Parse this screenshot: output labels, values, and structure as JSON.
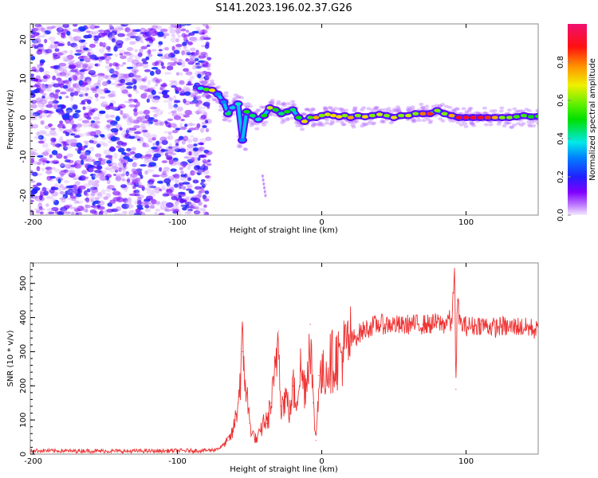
{
  "title": "S141.2023.196.02.37.G26",
  "chart_data": [
    {
      "type": "heatmap",
      "name": "spectrogram",
      "xlabel": "Height of straight line (km)",
      "ylabel": "Frequency (Hz)",
      "xlim": [
        -202,
        150
      ],
      "ylim": [
        -25,
        24
      ],
      "xticks": [
        -200,
        -100,
        0,
        100
      ],
      "yticks": [
        20,
        10,
        0,
        -10,
        -20
      ],
      "colorbar": {
        "label": "Normalized spectral amplitude",
        "range": [
          0,
          1
        ],
        "ticks": [
          "0.0",
          "0.2",
          "0.4",
          "0.6",
          "0.8"
        ]
      },
      "noise_region": {
        "x_range": [
          -202,
          -78
        ],
        "freq_range": [
          -25,
          24
        ],
        "amplitude_range": [
          0.0,
          0.2
        ]
      },
      "ridge": [
        {
          "x": -84,
          "f": 7.5,
          "a": 0.4
        },
        {
          "x": -80,
          "f": 7.2,
          "a": 0.55
        },
        {
          "x": -76,
          "f": 7.0,
          "a": 0.7
        },
        {
          "x": -72,
          "f": 6.0,
          "a": 0.3
        },
        {
          "x": -68,
          "f": 4.0,
          "a": 0.3
        },
        {
          "x": -65,
          "f": 1.0,
          "a": 0.45
        },
        {
          "x": -62,
          "f": 2.5,
          "a": 0.35
        },
        {
          "x": -58,
          "f": 3.5,
          "a": 0.4
        },
        {
          "x": -55,
          "f": -5.8,
          "a": 0.3
        },
        {
          "x": -52,
          "f": 1.5,
          "a": 0.5
        },
        {
          "x": -48,
          "f": 0.5,
          "a": 0.45
        },
        {
          "x": -44,
          "f": -0.5,
          "a": 0.4
        },
        {
          "x": -40,
          "f": 0.5,
          "a": 0.5
        },
        {
          "x": -36,
          "f": 2.5,
          "a": 0.65
        },
        {
          "x": -32,
          "f": 2.0,
          "a": 0.5
        },
        {
          "x": -28,
          "f": 1.0,
          "a": 0.45
        },
        {
          "x": -24,
          "f": 1.5,
          "a": 0.5
        },
        {
          "x": -20,
          "f": 2.0,
          "a": 0.45
        },
        {
          "x": -16,
          "f": 0.0,
          "a": 0.5
        },
        {
          "x": -12,
          "f": -1.0,
          "a": 0.7
        },
        {
          "x": -8,
          "f": 0.0,
          "a": 0.55
        },
        {
          "x": -4,
          "f": 0.0,
          "a": 0.75
        },
        {
          "x": 0,
          "f": 0.5,
          "a": 0.6
        },
        {
          "x": 4,
          "f": 0.8,
          "a": 0.65
        },
        {
          "x": 8,
          "f": 0.5,
          "a": 0.7
        },
        {
          "x": 12,
          "f": 0.2,
          "a": 0.7
        },
        {
          "x": 16,
          "f": 0.5,
          "a": 0.6
        },
        {
          "x": 20,
          "f": 0.0,
          "a": 0.75
        },
        {
          "x": 25,
          "f": 0.5,
          "a": 0.6
        },
        {
          "x": 30,
          "f": 0.2,
          "a": 0.7
        },
        {
          "x": 35,
          "f": 0.5,
          "a": 0.6
        },
        {
          "x": 40,
          "f": 0.8,
          "a": 0.65
        },
        {
          "x": 45,
          "f": 0.5,
          "a": 0.6
        },
        {
          "x": 50,
          "f": 0.0,
          "a": 0.7
        },
        {
          "x": 55,
          "f": 0.5,
          "a": 0.6
        },
        {
          "x": 60,
          "f": 0.5,
          "a": 0.65
        },
        {
          "x": 65,
          "f": 1.0,
          "a": 0.6
        },
        {
          "x": 70,
          "f": 1.0,
          "a": 0.8
        },
        {
          "x": 75,
          "f": 1.0,
          "a": 0.85
        },
        {
          "x": 80,
          "f": 1.8,
          "a": 0.6
        },
        {
          "x": 85,
          "f": 1.0,
          "a": 0.6
        },
        {
          "x": 90,
          "f": 0.5,
          "a": 0.75
        },
        {
          "x": 95,
          "f": 0.0,
          "a": 0.9
        },
        {
          "x": 100,
          "f": 0.0,
          "a": 0.9
        },
        {
          "x": 105,
          "f": 0.0,
          "a": 0.9
        },
        {
          "x": 110,
          "f": 0.0,
          "a": 0.9
        },
        {
          "x": 115,
          "f": 0.0,
          "a": 0.85
        },
        {
          "x": 120,
          "f": 0.0,
          "a": 0.75
        },
        {
          "x": 125,
          "f": 0.0,
          "a": 0.6
        },
        {
          "x": 130,
          "f": 0.0,
          "a": 0.6
        },
        {
          "x": 135,
          "f": 0.2,
          "a": 0.55
        },
        {
          "x": 140,
          "f": 0.5,
          "a": 0.55
        },
        {
          "x": 145,
          "f": 0.2,
          "a": 0.5
        },
        {
          "x": 150,
          "f": 0.3,
          "a": 0.5
        }
      ]
    },
    {
      "type": "line",
      "name": "snr",
      "xlabel": "Height of straight line (km)",
      "ylabel": "SNR (10 * v/v)",
      "xlim": [
        -202,
        150
      ],
      "ylim": [
        0,
        560
      ],
      "xticks": [
        -200,
        -100,
        0,
        100
      ],
      "yticks": [
        0,
        100,
        200,
        300,
        400,
        500
      ],
      "color": "#ee3333",
      "x": [
        -200,
        -195,
        -190,
        -185,
        -180,
        -175,
        -170,
        -165,
        -160,
        -155,
        -150,
        -145,
        -140,
        -135,
        -130,
        -125,
        -120,
        -115,
        -110,
        -105,
        -100,
        -95,
        -90,
        -85,
        -80,
        -75,
        -70,
        -65,
        -62,
        -60,
        -58,
        -55,
        -52,
        -50,
        -48,
        -45,
        -42,
        -40,
        -38,
        -35,
        -33,
        -30,
        -28,
        -25,
        -22,
        -20,
        -18,
        -15,
        -12,
        -10,
        -8,
        -6,
        -4,
        -2,
        0,
        3,
        6,
        10,
        15,
        20,
        25,
        30,
        35,
        40,
        45,
        50,
        55,
        60,
        65,
        70,
        75,
        80,
        85,
        88,
        90,
        92,
        93,
        94,
        96,
        100,
        105,
        110,
        115,
        120,
        125,
        130,
        135,
        140,
        145,
        150
      ],
      "values": [
        10,
        10,
        10,
        9,
        10,
        9,
        9,
        10,
        9,
        9,
        9,
        9,
        9,
        8,
        9,
        9,
        9,
        9,
        9,
        10,
        10,
        10,
        10,
        10,
        11,
        12,
        20,
        40,
        60,
        100,
        150,
        300,
        180,
        90,
        60,
        40,
        70,
        100,
        90,
        150,
        200,
        360,
        140,
        170,
        120,
        200,
        150,
        250,
        200,
        230,
        380,
        150,
        40,
        230,
        220,
        250,
        270,
        280,
        300,
        330,
        350,
        365,
        375,
        380,
        380,
        380,
        375,
        380,
        380,
        380,
        380,
        385,
        380,
        400,
        370,
        560,
        190,
        450,
        380,
        375,
        375,
        380,
        375,
        370,
        375,
        370,
        375,
        370,
        370,
        360
      ]
    }
  ]
}
